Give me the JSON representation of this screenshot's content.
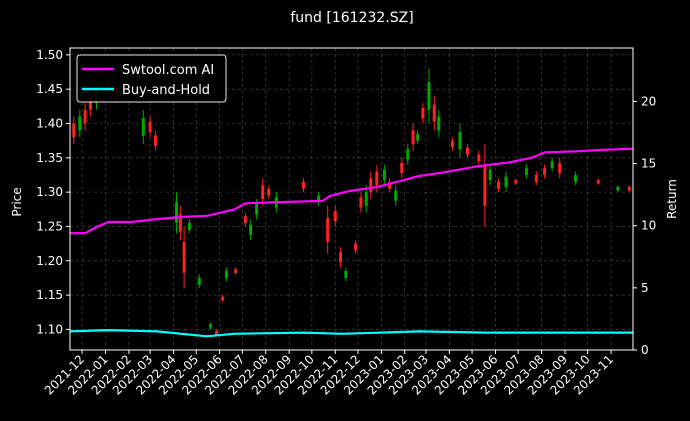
{
  "chart_data": {
    "type": "line",
    "title": "fund [161232.SZ]",
    "ylabel_left": "Price",
    "ylabel_right": "Return",
    "x_ticks": [
      "2021-12",
      "2022-01",
      "2022-02",
      "2022-03",
      "2022-04",
      "2022-05",
      "2022-06",
      "2022-07",
      "2022-08",
      "2022-09",
      "2022-10",
      "2022-11",
      "2022-12",
      "2023-01",
      "2023-02",
      "2023-03",
      "2023-04",
      "2023-05",
      "2023-06",
      "2023-07",
      "2023-08",
      "2023-09",
      "2023-10",
      "2023-11"
    ],
    "xlim": [
      "2021-11-15",
      "2023-11-30"
    ],
    "ylim_left": [
      1.07,
      1.51
    ],
    "ylim_right": [
      0,
      24.3
    ],
    "y_ticks_left": [
      "1.10",
      "1.15",
      "1.20",
      "1.25",
      "1.30",
      "1.35",
      "1.40",
      "1.45",
      "1.50"
    ],
    "y_ticks_right": [
      "0",
      "5",
      "10",
      "15",
      "20"
    ],
    "grid": true,
    "legend_position": "top-left",
    "series": [
      {
        "name": "Swtool.com AI",
        "color": "#ff00ff",
        "axis": "right",
        "points": [
          [
            "2021-11-15",
            9.4
          ],
          [
            "2021-12-05",
            9.4
          ],
          [
            "2021-12-20",
            9.9
          ],
          [
            "2022-01-05",
            10.3
          ],
          [
            "2022-02-05",
            10.3
          ],
          [
            "2022-03-05",
            10.5
          ],
          [
            "2022-04-10",
            10.7
          ],
          [
            "2022-05-15",
            10.8
          ],
          [
            "2022-06-20",
            11.3
          ],
          [
            "2022-07-05",
            11.8
          ],
          [
            "2022-08-20",
            11.9
          ],
          [
            "2022-10-15",
            12.0
          ],
          [
            "2022-10-25",
            12.4
          ],
          [
            "2022-11-20",
            12.8
          ],
          [
            "2022-12-25",
            13.1
          ],
          [
            "2023-01-20",
            13.5
          ],
          [
            "2023-02-20",
            14.0
          ],
          [
            "2023-03-25",
            14.3
          ],
          [
            "2023-05-10",
            14.8
          ],
          [
            "2023-06-20",
            15.1
          ],
          [
            "2023-07-20",
            15.5
          ],
          [
            "2023-08-05",
            15.9
          ],
          [
            "2023-09-20",
            16.0
          ],
          [
            "2023-10-20",
            16.1
          ],
          [
            "2023-11-30",
            16.2
          ]
        ]
      },
      {
        "name": "Buy-and-Hold",
        "color": "#00ffff",
        "axis": "right",
        "points": [
          [
            "2021-11-15",
            1.5
          ],
          [
            "2022-01-05",
            1.6
          ],
          [
            "2022-03-10",
            1.5
          ],
          [
            "2022-05-15",
            1.1
          ],
          [
            "2022-06-20",
            1.3
          ],
          [
            "2022-09-20",
            1.4
          ],
          [
            "2022-11-10",
            1.3
          ],
          [
            "2023-02-20",
            1.5
          ],
          [
            "2023-05-20",
            1.4
          ],
          [
            "2023-09-10",
            1.4
          ],
          [
            "2023-11-30",
            1.4
          ]
        ]
      }
    ],
    "candles": {
      "axis": "left",
      "up_color": "#00aa00",
      "down_color": "#ff2222",
      "items": [
        [
          "2021-11-20",
          1.37,
          1.41,
          "down"
        ],
        [
          "2021-11-28",
          1.38,
          1.42,
          "up"
        ],
        [
          "2021-12-05",
          1.39,
          1.43,
          "down"
        ],
        [
          "2021-12-12",
          1.41,
          1.45,
          "down"
        ],
        [
          "2021-12-20",
          1.42,
          1.46,
          "up"
        ],
        [
          "2022-01-05",
          1.44,
          1.47,
          "down"
        ],
        [
          "2022-01-15",
          1.43,
          1.46,
          "down"
        ],
        [
          "2022-02-20",
          1.37,
          1.42,
          "up"
        ],
        [
          "2022-03-01",
          1.38,
          1.41,
          "down"
        ],
        [
          "2022-03-08",
          1.36,
          1.39,
          "down"
        ],
        [
          "2022-04-05",
          1.24,
          1.3,
          "up"
        ],
        [
          "2022-04-10",
          1.23,
          1.28,
          "down"
        ],
        [
          "2022-04-15",
          1.16,
          1.25,
          "down"
        ],
        [
          "2022-04-22",
          1.24,
          1.26,
          "up"
        ],
        [
          "2022-05-05",
          1.16,
          1.18,
          "up"
        ],
        [
          "2022-05-20",
          1.1,
          1.11,
          "up"
        ],
        [
          "2022-05-28",
          1.09,
          1.1,
          "down"
        ],
        [
          "2022-06-05",
          1.14,
          1.15,
          "down"
        ],
        [
          "2022-06-10",
          1.17,
          1.19,
          "up"
        ],
        [
          "2022-06-22",
          1.18,
          1.19,
          "down"
        ],
        [
          "2022-07-05",
          1.25,
          1.27,
          "down"
        ],
        [
          "2022-07-12",
          1.23,
          1.26,
          "up"
        ],
        [
          "2022-07-20",
          1.26,
          1.29,
          "up"
        ],
        [
          "2022-07-28",
          1.28,
          1.32,
          "down"
        ],
        [
          "2022-08-05",
          1.29,
          1.31,
          "down"
        ],
        [
          "2022-08-15",
          1.27,
          1.3,
          "up"
        ],
        [
          "2022-09-20",
          1.3,
          1.32,
          "down"
        ],
        [
          "2022-10-10",
          1.28,
          1.3,
          "up"
        ],
        [
          "2022-10-22",
          1.21,
          1.28,
          "down"
        ],
        [
          "2022-11-01",
          1.25,
          1.28,
          "down"
        ],
        [
          "2022-11-08",
          1.19,
          1.22,
          "down"
        ],
        [
          "2022-11-15",
          1.17,
          1.19,
          "up"
        ],
        [
          "2022-11-28",
          1.21,
          1.23,
          "down"
        ],
        [
          "2022-12-05",
          1.27,
          1.3,
          "down"
        ],
        [
          "2022-12-12",
          1.27,
          1.31,
          "up"
        ],
        [
          "2022-12-18",
          1.29,
          1.33,
          "down"
        ],
        [
          "2022-12-26",
          1.3,
          1.34,
          "down"
        ],
        [
          "2023-01-05",
          1.31,
          1.34,
          "up"
        ],
        [
          "2023-01-12",
          1.3,
          1.32,
          "down"
        ],
        [
          "2023-01-20",
          1.28,
          1.31,
          "up"
        ],
        [
          "2023-01-28",
          1.32,
          1.35,
          "down"
        ],
        [
          "2023-02-05",
          1.34,
          1.37,
          "up"
        ],
        [
          "2023-02-12",
          1.36,
          1.4,
          "down"
        ],
        [
          "2023-02-18",
          1.37,
          1.39,
          "up"
        ],
        [
          "2023-02-25",
          1.4,
          1.43,
          "down"
        ],
        [
          "2023-03-05",
          1.4,
          1.48,
          "up"
        ],
        [
          "2023-03-12",
          1.39,
          1.44,
          "down"
        ],
        [
          "2023-03-18",
          1.38,
          1.42,
          "up"
        ],
        [
          "2023-04-05",
          1.36,
          1.38,
          "down"
        ],
        [
          "2023-04-15",
          1.35,
          1.4,
          "up"
        ],
        [
          "2023-04-25",
          1.35,
          1.37,
          "down"
        ],
        [
          "2023-05-10",
          1.34,
          1.36,
          "down"
        ],
        [
          "2023-05-18",
          1.25,
          1.37,
          "down"
        ],
        [
          "2023-05-25",
          1.31,
          1.34,
          "up"
        ],
        [
          "2023-06-05",
          1.3,
          1.32,
          "down"
        ],
        [
          "2023-06-15",
          1.3,
          1.33,
          "up"
        ],
        [
          "2023-06-28",
          1.31,
          1.32,
          "down"
        ],
        [
          "2023-07-12",
          1.32,
          1.34,
          "up"
        ],
        [
          "2023-07-25",
          1.31,
          1.33,
          "down"
        ],
        [
          "2023-08-05",
          1.32,
          1.34,
          "down"
        ],
        [
          "2023-08-15",
          1.33,
          1.35,
          "up"
        ],
        [
          "2023-08-25",
          1.32,
          1.35,
          "down"
        ],
        [
          "2023-09-15",
          1.31,
          1.33,
          "up"
        ],
        [
          "2023-10-15",
          1.31,
          1.32,
          "down"
        ],
        [
          "2023-11-10",
          1.3,
          1.31,
          "up"
        ],
        [
          "2023-11-25",
          1.3,
          1.31,
          "down"
        ]
      ]
    }
  }
}
